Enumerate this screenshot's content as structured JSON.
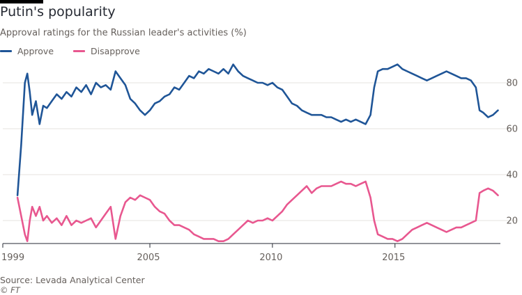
{
  "title": "Putin's popularity",
  "subtitle": "Approval ratings for the Russian leader's activities (%)",
  "source": "Source: Levada Analytical Center",
  "credit": "© FT",
  "colors": {
    "approve": "#1f5597",
    "disapprove": "#e8578f",
    "grid": "#e6e3df",
    "axis": "#262a33",
    "text": "#66605c"
  },
  "chart_data": {
    "type": "line",
    "title": "Putin's popularity",
    "subtitle": "Approval ratings for the Russian leader's activities (%)",
    "xlabel": "",
    "ylabel": "",
    "xlim": [
      1999.0,
      2019.3
    ],
    "ylim": [
      10,
      90
    ],
    "x_ticks": [
      "1999",
      "2005",
      "2010",
      "2015"
    ],
    "y_ticks": [
      "20",
      "40",
      "60",
      "80"
    ],
    "grid": "horizontal",
    "legend_position": "top-left",
    "series": [
      {
        "name": "Approve",
        "color": "#1f5597",
        "x": [
          1999.6,
          1999.75,
          1999.9,
          2000.0,
          2000.1,
          2000.2,
          2000.35,
          2000.5,
          2000.65,
          2000.8,
          2001.0,
          2001.2,
          2001.4,
          2001.6,
          2001.8,
          2002.0,
          2002.2,
          2002.4,
          2002.6,
          2002.8,
          2003.0,
          2003.2,
          2003.4,
          2003.6,
          2003.8,
          2004.0,
          2004.2,
          2004.4,
          2004.6,
          2004.8,
          2005.0,
          2005.2,
          2005.4,
          2005.6,
          2005.8,
          2006.0,
          2006.2,
          2006.4,
          2006.6,
          2006.8,
          2007.0,
          2007.2,
          2007.4,
          2007.6,
          2007.8,
          2008.0,
          2008.2,
          2008.4,
          2008.6,
          2008.8,
          2009.0,
          2009.2,
          2009.4,
          2009.6,
          2009.8,
          2010.0,
          2010.2,
          2010.4,
          2010.6,
          2010.8,
          2011.0,
          2011.2,
          2011.4,
          2011.6,
          2011.8,
          2012.0,
          2012.2,
          2012.4,
          2012.6,
          2012.8,
          2013.0,
          2013.2,
          2013.4,
          2013.6,
          2013.8,
          2014.0,
          2014.15,
          2014.3,
          2014.5,
          2014.7,
          2014.9,
          2015.1,
          2015.3,
          2015.5,
          2015.7,
          2015.9,
          2016.1,
          2016.3,
          2016.5,
          2016.7,
          2016.9,
          2017.1,
          2017.3,
          2017.5,
          2017.7,
          2017.9,
          2018.1,
          2018.3,
          2018.45,
          2018.6,
          2018.8,
          2019.0,
          2019.2
        ],
        "values": [
          31,
          53,
          80,
          84,
          76,
          66,
          72,
          62,
          70,
          69,
          72,
          75,
          73,
          76,
          74,
          78,
          76,
          79,
          75,
          80,
          78,
          79,
          77,
          85,
          82,
          79,
          73,
          71,
          68,
          66,
          68,
          71,
          72,
          74,
          75,
          78,
          77,
          80,
          83,
          82,
          85,
          84,
          86,
          85,
          84,
          86,
          84,
          88,
          85,
          83,
          82,
          81,
          80,
          80,
          79,
          80,
          78,
          77,
          74,
          71,
          70,
          68,
          67,
          66,
          66,
          66,
          65,
          65,
          64,
          63,
          64,
          63,
          64,
          63,
          62,
          66,
          78,
          85,
          86,
          86,
          87,
          88,
          86,
          85,
          84,
          83,
          82,
          81,
          82,
          83,
          84,
          85,
          84,
          83,
          82,
          82,
          81,
          78,
          68,
          67,
          65,
          66,
          68
        ]
      },
      {
        "name": "Disapprove",
        "color": "#e8578f",
        "x": [
          1999.6,
          1999.75,
          1999.9,
          2000.0,
          2000.1,
          2000.2,
          2000.35,
          2000.5,
          2000.65,
          2000.8,
          2001.0,
          2001.2,
          2001.4,
          2001.6,
          2001.8,
          2002.0,
          2002.2,
          2002.4,
          2002.6,
          2002.8,
          2003.0,
          2003.2,
          2003.4,
          2003.6,
          2003.8,
          2004.0,
          2004.2,
          2004.4,
          2004.6,
          2004.8,
          2005.0,
          2005.2,
          2005.4,
          2005.6,
          2005.8,
          2006.0,
          2006.2,
          2006.4,
          2006.6,
          2006.8,
          2007.0,
          2007.2,
          2007.4,
          2007.6,
          2007.8,
          2008.0,
          2008.2,
          2008.4,
          2008.6,
          2008.8,
          2009.0,
          2009.2,
          2009.4,
          2009.6,
          2009.8,
          2010.0,
          2010.2,
          2010.4,
          2010.6,
          2010.8,
          2011.0,
          2011.2,
          2011.4,
          2011.6,
          2011.8,
          2012.0,
          2012.2,
          2012.4,
          2012.6,
          2012.8,
          2013.0,
          2013.2,
          2013.4,
          2013.6,
          2013.8,
          2014.0,
          2014.15,
          2014.3,
          2014.5,
          2014.7,
          2014.9,
          2015.1,
          2015.3,
          2015.5,
          2015.7,
          2015.9,
          2016.1,
          2016.3,
          2016.5,
          2016.7,
          2016.9,
          2017.1,
          2017.3,
          2017.5,
          2017.7,
          2017.9,
          2018.1,
          2018.3,
          2018.45,
          2018.6,
          2018.8,
          2019.0,
          2019.2
        ],
        "values": [
          30,
          22,
          14,
          11,
          20,
          26,
          22,
          26,
          20,
          22,
          19,
          21,
          18,
          22,
          18,
          20,
          19,
          20,
          21,
          17,
          20,
          23,
          26,
          12,
          22,
          28,
          30,
          29,
          31,
          30,
          29,
          26,
          24,
          23,
          20,
          18,
          18,
          17,
          16,
          14,
          13,
          12,
          12,
          12,
          11,
          11,
          12,
          14,
          16,
          18,
          20,
          19,
          20,
          20,
          21,
          20,
          22,
          24,
          27,
          29,
          31,
          33,
          35,
          32,
          34,
          35,
          35,
          35,
          36,
          37,
          36,
          36,
          35,
          36,
          37,
          30,
          20,
          14,
          13,
          12,
          12,
          11,
          12,
          14,
          16,
          17,
          18,
          19,
          18,
          17,
          16,
          15,
          16,
          17,
          17,
          18,
          19,
          20,
          32,
          33,
          34,
          33,
          31
        ]
      }
    ]
  }
}
